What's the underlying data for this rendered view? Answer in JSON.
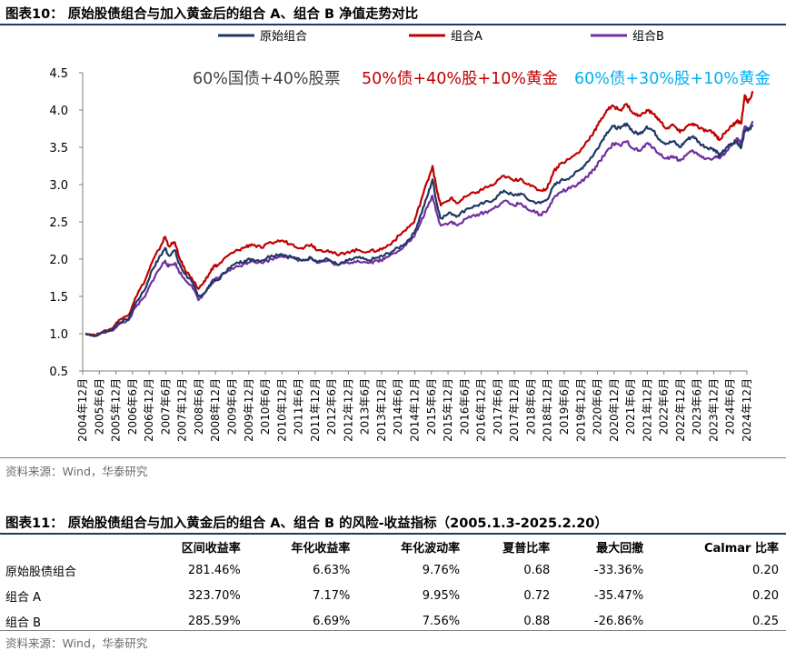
{
  "figure10": {
    "title": "图表10：  原始股债组合与加入黄金后的组合 A、组合 B 净值走势对比",
    "source": "资料来源：Wind，华泰研究"
  },
  "figure11": {
    "title": "图表11：  原始股债组合与加入黄金后的组合 A、组合 B 的风险-收益指标（2005.1.3-2025.2.20）",
    "source": "资料来源：Wind，华泰研究",
    "columns": [
      "",
      "区间收益率",
      "年化收益率",
      "年化波动率",
      "夏普比率",
      "最大回撤",
      "Calmar 比率"
    ],
    "rows": [
      [
        "原始股债组合",
        "281.46%",
        "6.63%",
        "9.76%",
        "0.68",
        "-33.36%",
        "0.20"
      ],
      [
        "组合 A",
        "323.70%",
        "7.17%",
        "9.95%",
        "0.72",
        "-35.47%",
        "0.20"
      ],
      [
        "组合 B",
        "285.59%",
        "6.69%",
        "7.56%",
        "0.88",
        "-26.86%",
        "0.25"
      ]
    ]
  },
  "chart_data": {
    "type": "line",
    "title": "",
    "xlabel": "",
    "ylabel": "",
    "ylim": [
      0.5,
      4.5
    ],
    "yticks": [
      "0.5",
      "1.0",
      "1.5",
      "2.0",
      "2.5",
      "3.0",
      "3.5",
      "4.0",
      "4.5"
    ],
    "xlim": [
      2004.917,
      2024.917
    ],
    "xticks": [
      "2004年12月",
      "2005年6月",
      "2005年12月",
      "2006年6月",
      "2006年12月",
      "2007年6月",
      "2007年12月",
      "2008年6月",
      "2008年12月",
      "2009年6月",
      "2009年12月",
      "2010年6月",
      "2010年12月",
      "2011年6月",
      "2011年12月",
      "2012年6月",
      "2012年12月",
      "2013年6月",
      "2013年12月",
      "2014年6月",
      "2014年12月",
      "2015年6月",
      "2015年12月",
      "2016年6月",
      "2016年12月",
      "2017年6月",
      "2017年12月",
      "2018年6月",
      "2018年12月",
      "2019年6月",
      "2019年12月",
      "2020年6月",
      "2020年12月",
      "2021年6月",
      "2021年12月",
      "2022年6月",
      "2022年12月",
      "2023年6月",
      "2023年12月",
      "2024年6月",
      "2024年12月"
    ],
    "legend_position": "top",
    "annotations": [
      {
        "text": "60%国债+40%股票",
        "color": "#404040"
      },
      {
        "text": "50%债+40%股+10%黄金",
        "color": "#c00000"
      },
      {
        "text": "60%债+30%股+10%黄金",
        "color": "#00b0f0"
      }
    ],
    "x": [
      2005.0,
      2005.3,
      2005.5,
      2005.8,
      2006.0,
      2006.3,
      2006.5,
      2006.8,
      2007.0,
      2007.2,
      2007.4,
      2007.5,
      2007.7,
      2007.8,
      2008.0,
      2008.2,
      2008.4,
      2008.6,
      2008.75,
      2008.85,
      2009.0,
      2009.3,
      2009.6,
      2009.8,
      2010.0,
      2010.3,
      2010.6,
      2010.9,
      2011.2,
      2011.5,
      2011.8,
      2012.0,
      2012.3,
      2012.6,
      2012.9,
      2013.2,
      2013.5,
      2013.8,
      2014.0,
      2014.3,
      2014.6,
      2014.9,
      2015.1,
      2015.3,
      2015.45,
      2015.6,
      2015.7,
      2016.0,
      2016.2,
      2016.5,
      2016.8,
      2017.0,
      2017.3,
      2017.6,
      2017.9,
      2018.1,
      2018.4,
      2018.7,
      2018.9,
      2019.1,
      2019.3,
      2019.6,
      2019.9,
      2020.1,
      2020.3,
      2020.5,
      2020.7,
      2020.9,
      2021.1,
      2021.3,
      2021.5,
      2021.7,
      2021.9,
      2022.1,
      2022.3,
      2022.5,
      2022.7,
      2022.9,
      2023.1,
      2023.3,
      2023.5,
      2023.7,
      2023.9,
      2024.0,
      2024.1,
      2024.3,
      2024.5,
      2024.6,
      2024.65,
      2024.75,
      2024.85,
      2024.95,
      2025.1
    ],
    "series": [
      {
        "name": "原始组合",
        "color": "#1f3864",
        "values": [
          1.0,
          0.97,
          1.02,
          1.05,
          1.15,
          1.2,
          1.4,
          1.6,
          1.85,
          2.0,
          2.15,
          2.05,
          2.12,
          1.95,
          1.8,
          1.7,
          1.5,
          1.55,
          1.65,
          1.7,
          1.72,
          1.88,
          1.95,
          1.98,
          2.0,
          1.98,
          2.05,
          2.07,
          2.03,
          1.98,
          2.02,
          1.97,
          2.0,
          1.92,
          1.98,
          2.02,
          1.98,
          2.02,
          2.05,
          2.12,
          2.2,
          2.35,
          2.6,
          2.85,
          3.07,
          2.7,
          2.55,
          2.62,
          2.58,
          2.68,
          2.72,
          2.75,
          2.8,
          2.92,
          2.85,
          2.88,
          2.78,
          2.75,
          2.8,
          2.98,
          3.05,
          3.1,
          3.2,
          3.3,
          3.4,
          3.55,
          3.7,
          3.78,
          3.75,
          3.82,
          3.7,
          3.68,
          3.78,
          3.72,
          3.6,
          3.55,
          3.58,
          3.5,
          3.6,
          3.65,
          3.55,
          3.5,
          3.48,
          3.45,
          3.38,
          3.5,
          3.55,
          3.58,
          3.55,
          3.5,
          3.72,
          3.75,
          3.78
        ]
      },
      {
        "name": "组合A",
        "color": "#c00000",
        "values": [
          1.0,
          0.98,
          1.02,
          1.07,
          1.18,
          1.25,
          1.48,
          1.72,
          1.95,
          2.12,
          2.3,
          2.18,
          2.22,
          2.05,
          1.85,
          1.75,
          1.6,
          1.7,
          1.82,
          1.9,
          1.92,
          2.05,
          2.12,
          2.16,
          2.2,
          2.15,
          2.22,
          2.25,
          2.2,
          2.15,
          2.2,
          2.12,
          2.12,
          2.05,
          2.1,
          2.12,
          2.1,
          2.12,
          2.15,
          2.25,
          2.38,
          2.5,
          2.78,
          3.05,
          3.25,
          2.88,
          2.72,
          2.82,
          2.75,
          2.85,
          2.9,
          2.95,
          3.0,
          3.12,
          3.05,
          3.08,
          2.98,
          2.92,
          2.95,
          3.18,
          3.28,
          3.35,
          3.45,
          3.58,
          3.7,
          3.85,
          4.0,
          4.05,
          4.0,
          4.08,
          3.95,
          3.92,
          4.0,
          3.95,
          3.85,
          3.75,
          3.8,
          3.7,
          3.78,
          3.82,
          3.75,
          3.72,
          3.7,
          3.65,
          3.6,
          3.72,
          3.8,
          3.85,
          3.85,
          3.82,
          4.2,
          4.1,
          4.25
        ]
      },
      {
        "name": "组合B",
        "color": "#7030a0",
        "values": [
          1.0,
          0.97,
          1.01,
          1.04,
          1.12,
          1.18,
          1.35,
          1.5,
          1.7,
          1.85,
          1.98,
          1.9,
          1.95,
          1.85,
          1.72,
          1.65,
          1.45,
          1.55,
          1.65,
          1.72,
          1.75,
          1.85,
          1.9,
          1.94,
          1.98,
          1.95,
          2.0,
          2.05,
          2.02,
          1.98,
          2.02,
          1.95,
          1.98,
          1.92,
          1.95,
          1.98,
          1.95,
          1.98,
          2.0,
          2.08,
          2.18,
          2.3,
          2.5,
          2.7,
          2.85,
          2.58,
          2.45,
          2.5,
          2.45,
          2.55,
          2.6,
          2.62,
          2.68,
          2.78,
          2.72,
          2.75,
          2.65,
          2.6,
          2.65,
          2.82,
          2.9,
          2.95,
          3.02,
          3.1,
          3.2,
          3.32,
          3.45,
          3.55,
          3.52,
          3.58,
          3.48,
          3.45,
          3.55,
          3.5,
          3.4,
          3.35,
          3.38,
          3.32,
          3.4,
          3.45,
          3.38,
          3.35,
          3.35,
          3.38,
          3.35,
          3.45,
          3.55,
          3.6,
          3.6,
          3.55,
          3.78,
          3.72,
          3.85
        ]
      }
    ]
  }
}
